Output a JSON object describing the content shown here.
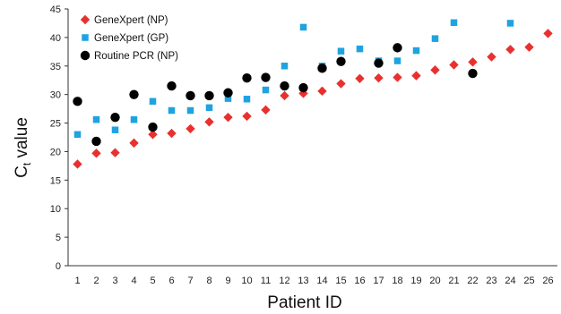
{
  "chart_data": {
    "type": "scatter",
    "xlabel": "Patient ID",
    "ylabel_main": "C",
    "ylabel_sub": "t",
    "ylabel_rest": " value",
    "ylim": [
      0,
      45
    ],
    "yticks": [
      "0",
      "5",
      "10",
      "15",
      "20",
      "25",
      "30",
      "35",
      "40",
      "45"
    ],
    "xticks": [
      "1",
      "2",
      "3",
      "4",
      "5",
      "6",
      "7",
      "8",
      "9",
      "10",
      "11",
      "12",
      "13",
      "14",
      "15",
      "16",
      "17",
      "18",
      "19",
      "20",
      "21",
      "22",
      "23",
      "24",
      "25",
      "26"
    ],
    "legend_position": "top-left",
    "series": [
      {
        "name": "GeneXpert (NP)",
        "marker": "diamond",
        "color": "#e8312f",
        "points": [
          [
            1,
            17.8
          ],
          [
            2,
            19.7
          ],
          [
            3,
            19.8
          ],
          [
            4,
            21.5
          ],
          [
            5,
            23.0
          ],
          [
            6,
            23.2
          ],
          [
            7,
            24.0
          ],
          [
            8,
            25.2
          ],
          [
            9,
            26.0
          ],
          [
            10,
            26.2
          ],
          [
            11,
            27.3
          ],
          [
            12,
            29.8
          ],
          [
            13,
            30.2
          ],
          [
            14,
            30.6
          ],
          [
            15,
            31.9
          ],
          [
            16,
            32.8
          ],
          [
            17,
            32.9
          ],
          [
            18,
            33.0
          ],
          [
            19,
            33.3
          ],
          [
            20,
            34.3
          ],
          [
            21,
            35.2
          ],
          [
            22,
            35.7
          ],
          [
            23,
            36.6
          ],
          [
            24,
            37.9
          ],
          [
            25,
            38.3
          ],
          [
            26,
            40.7
          ]
        ]
      },
      {
        "name": "GeneXpert (GP)",
        "marker": "square",
        "color": "#1fa3e0",
        "points": [
          [
            1,
            23.0
          ],
          [
            2,
            25.6
          ],
          [
            3,
            23.8
          ],
          [
            4,
            25.6
          ],
          [
            5,
            28.8
          ],
          [
            6,
            27.2
          ],
          [
            7,
            27.2
          ],
          [
            8,
            27.7
          ],
          [
            9,
            29.3
          ],
          [
            10,
            29.2
          ],
          [
            11,
            30.8
          ],
          [
            12,
            35.0
          ],
          [
            13,
            41.8
          ],
          [
            14,
            35.0
          ],
          [
            15,
            37.6
          ],
          [
            16,
            38.0
          ],
          [
            17,
            35.9
          ],
          [
            18,
            35.9
          ],
          [
            19,
            37.7
          ],
          [
            20,
            39.8
          ],
          [
            21,
            42.6
          ],
          [
            24,
            42.5
          ]
        ]
      },
      {
        "name": "Routine PCR (NP)",
        "marker": "circle",
        "color": "#000000",
        "points": [
          [
            1,
            28.8
          ],
          [
            2,
            21.8
          ],
          [
            3,
            26.0
          ],
          [
            4,
            30.0
          ],
          [
            5,
            24.3
          ],
          [
            6,
            31.5
          ],
          [
            7,
            29.8
          ],
          [
            8,
            29.8
          ],
          [
            9,
            30.3
          ],
          [
            10,
            32.9
          ],
          [
            11,
            33.0
          ],
          [
            12,
            31.5
          ],
          [
            13,
            31.2
          ],
          [
            14,
            34.6
          ],
          [
            15,
            35.8
          ],
          [
            17,
            35.5
          ],
          [
            18,
            38.2
          ],
          [
            22,
            33.7
          ]
        ]
      }
    ]
  }
}
